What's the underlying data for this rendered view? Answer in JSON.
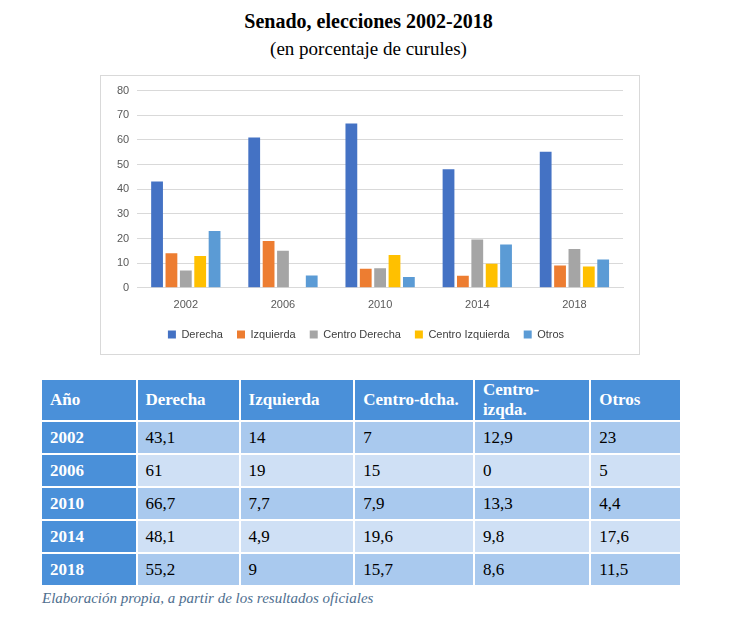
{
  "chart_data": {
    "type": "bar",
    "title": "Senado, elecciones 2002-2018",
    "subtitle": "(en porcentaje de curules)",
    "categories": [
      "2002",
      "2006",
      "2010",
      "2014",
      "2018"
    ],
    "series": [
      {
        "name": "Derecha",
        "color": "#4472c4",
        "values": [
          43.1,
          61,
          66.7,
          48.1,
          55.2
        ]
      },
      {
        "name": "Izquierda",
        "color": "#ed7d31",
        "values": [
          14,
          19,
          7.7,
          4.9,
          9
        ]
      },
      {
        "name": "Centro Derecha",
        "color": "#a5a5a5",
        "values": [
          7,
          15,
          7.9,
          19.6,
          15.7
        ]
      },
      {
        "name": "Centro Izquierda",
        "color": "#ffc000",
        "values": [
          12.9,
          0,
          13.3,
          9.8,
          8.6
        ]
      },
      {
        "name": "Otros",
        "color": "#5b9bd5",
        "values": [
          23,
          5,
          4.4,
          17.6,
          11.5
        ]
      }
    ],
    "ylim": [
      0,
      80
    ],
    "yticks": [
      0,
      10,
      20,
      30,
      40,
      50,
      60,
      70,
      80
    ],
    "grid": true,
    "legend": "bottom"
  },
  "table": {
    "header": [
      "Año",
      "Derecha",
      "Izquierda",
      "Centro-dcha.",
      "Centro-izqda.",
      "Otros"
    ],
    "rows": [
      [
        "2002",
        "43,1",
        "14",
        "7",
        "12,9",
        "23"
      ],
      [
        "2006",
        "61",
        "19",
        "15",
        "0",
        "5"
      ],
      [
        "2010",
        "66,7",
        "7,7",
        "7,9",
        "13,3",
        "4,4"
      ],
      [
        "2014",
        "48,1",
        "4,9",
        "19,6",
        "9,8",
        "17,6"
      ],
      [
        "2018",
        "55,2",
        "9",
        "15,7",
        "8,6",
        "11,5"
      ]
    ]
  },
  "note": "Elaboración propia, a partir de los resultados oficiales"
}
